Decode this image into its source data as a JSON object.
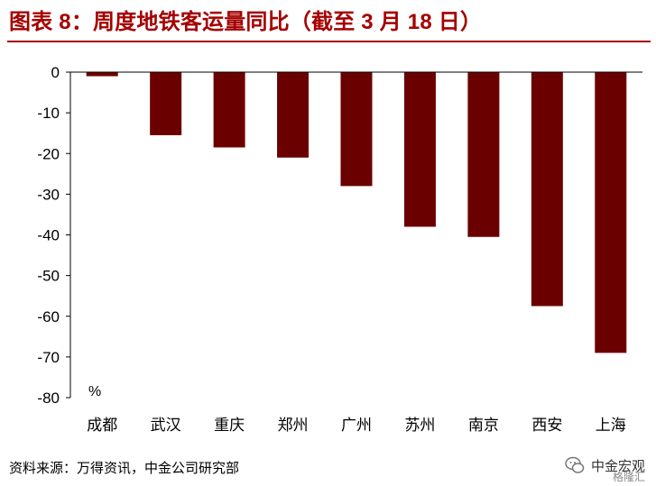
{
  "title": "图表 8：周度地铁客运量同比（截至 3 月 18 日）",
  "source": "资料来源：万得资讯，中金公司研究部",
  "watermark": {
    "brand": "中金宏观",
    "sub": "格隆汇"
  },
  "colors": {
    "bar": "#6b0000",
    "axis_text": "#000000",
    "title": "#a50000"
  },
  "chart_data": {
    "type": "bar",
    "unit_label": "%",
    "categories": [
      "成都",
      "武汉",
      "重庆",
      "郑州",
      "广州",
      "苏州",
      "南京",
      "西安",
      "上海"
    ],
    "values": [
      -1,
      -15.5,
      -18.5,
      -21,
      -28,
      -38,
      -40.5,
      -57.5,
      -69
    ],
    "ylim": [
      -80,
      0
    ],
    "yticks": [
      "0",
      "-10",
      "-20",
      "-30",
      "-40",
      "-50",
      "-60",
      "-70",
      "-80"
    ],
    "ytick_values": [
      0,
      -10,
      -20,
      -30,
      -40,
      -50,
      -60,
      -70,
      -80
    ],
    "grid": false,
    "legend": "none"
  }
}
